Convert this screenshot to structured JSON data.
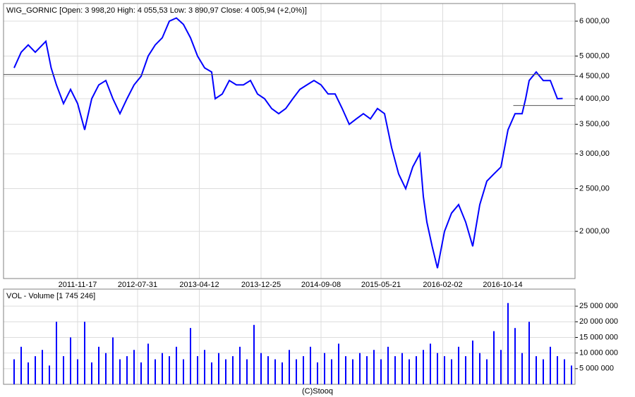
{
  "chart_data": [
    {
      "type": "line",
      "title": "WIG_GORNIC [Open: 3 998,20  High: 4 055,53  Low: 3 890,97  Close: 4 005,94  (+2,0%)]",
      "color": "#0000ff",
      "log_scale": true,
      "grid": true,
      "x": [
        0,
        4,
        8,
        12,
        18,
        21,
        24,
        28,
        32,
        36,
        40,
        44,
        48,
        52,
        56,
        60,
        64,
        68,
        72,
        76,
        80,
        84,
        88,
        92,
        96,
        100,
        104,
        108,
        112,
        114,
        118,
        122,
        126,
        130,
        134,
        138,
        142,
        146,
        150,
        154,
        158,
        162,
        166,
        170,
        174,
        178,
        182,
        186,
        190,
        194,
        198,
        202,
        206,
        210,
        214,
        218,
        222,
        226,
        230,
        232,
        234,
        237,
        240,
        244,
        248,
        252,
        256,
        260,
        264,
        268,
        272,
        276,
        280,
        284,
        288,
        290,
        292,
        296,
        300,
        304,
        308,
        311
      ],
      "values": [
        4700,
        5100,
        5300,
        5100,
        5400,
        4700,
        4300,
        3900,
        4200,
        3900,
        3400,
        4000,
        4300,
        4400,
        4000,
        3700,
        4000,
        4300,
        4500,
        5000,
        5300,
        5500,
        6000,
        6100,
        5900,
        5500,
        5000,
        4700,
        4600,
        4000,
        4100,
        4400,
        4300,
        4300,
        4400,
        4100,
        4000,
        3800,
        3700,
        3800,
        4000,
        4200,
        4300,
        4400,
        4300,
        4100,
        4100,
        3800,
        3500,
        3600,
        3700,
        3600,
        3800,
        3700,
        3100,
        2700,
        2500,
        2800,
        3000,
        2400,
        2100,
        1850,
        1650,
        2000,
        2200,
        2300,
        2100,
        1850,
        2300,
        2600,
        2700,
        2800,
        3400,
        3700,
        3700,
        4000,
        4400,
        4600,
        4400,
        4400,
        4000,
        4006
      ],
      "xlim": [
        -6,
        318
      ],
      "xticks": [
        {
          "value": 36,
          "label": "2011-11-17"
        },
        {
          "value": 70,
          "label": "2012-07-31"
        },
        {
          "value": 105,
          "label": "2013-04-12"
        },
        {
          "value": 140,
          "label": "2013-12-25"
        },
        {
          "value": 174,
          "label": "2014-09-08"
        },
        {
          "value": 208,
          "label": "2015-05-21"
        },
        {
          "value": 243,
          "label": "2016-02-02"
        },
        {
          "value": 277,
          "label": "2016-10-14"
        }
      ],
      "ylim": [
        1563,
        6579
      ],
      "yticks": [
        {
          "value": 2000,
          "label": "2 000,00"
        },
        {
          "value": 2500,
          "label": "2 500,00"
        },
        {
          "value": 3000,
          "label": "3 000,00"
        },
        {
          "value": 3500,
          "label": "3 500,00"
        },
        {
          "value": 4000,
          "label": "4 000,00"
        },
        {
          "value": 4500,
          "label": "4 500,00"
        },
        {
          "value": 5000,
          "label": "5 000,00"
        },
        {
          "value": 6000,
          "label": "6 000,00"
        }
      ],
      "hlines": [
        4540,
        3860
      ]
    },
    {
      "type": "bar",
      "title": "VOL - Volume [1 745 246]",
      "color": "#0000ff",
      "grid": true,
      "x": [
        0,
        4,
        8,
        12,
        16,
        20,
        24,
        28,
        32,
        36,
        40,
        44,
        48,
        52,
        56,
        60,
        64,
        68,
        72,
        76,
        80,
        84,
        88,
        92,
        96,
        100,
        104,
        108,
        112,
        116,
        120,
        124,
        128,
        132,
        136,
        140,
        144,
        148,
        152,
        156,
        160,
        164,
        168,
        172,
        176,
        180,
        184,
        188,
        192,
        196,
        200,
        204,
        208,
        212,
        216,
        220,
        224,
        228,
        232,
        236,
        240,
        244,
        248,
        252,
        256,
        260,
        264,
        268,
        272,
        276,
        280,
        284,
        288,
        292,
        296,
        300,
        304,
        308,
        312,
        316
      ],
      "values": [
        8000000,
        12000000,
        7000000,
        9000000,
        11000000,
        6000000,
        20000000,
        9000000,
        15000000,
        8000000,
        20000000,
        7000000,
        12000000,
        10000000,
        15000000,
        8000000,
        9000000,
        11000000,
        7000000,
        13000000,
        8000000,
        10000000,
        9000000,
        12000000,
        8000000,
        18000000,
        9000000,
        11000000,
        7000000,
        10000000,
        8000000,
        9000000,
        12000000,
        8000000,
        19000000,
        10000000,
        9000000,
        8000000,
        7000000,
        11000000,
        8000000,
        9000000,
        12000000,
        7000000,
        10000000,
        8000000,
        13000000,
        9000000,
        8000000,
        10000000,
        9000000,
        11000000,
        8000000,
        12000000,
        9000000,
        10000000,
        8000000,
        9000000,
        11000000,
        13000000,
        10000000,
        9000000,
        8000000,
        12000000,
        9000000,
        14000000,
        10000000,
        8000000,
        17000000,
        11000000,
        26000000,
        18000000,
        10000000,
        20000000,
        9000000,
        8000000,
        12000000,
        9000000,
        8000000,
        6000000
      ],
      "xlim": [
        -6,
        318
      ],
      "ylim": [
        0,
        30450000
      ],
      "yticks": [
        {
          "value": 5000000,
          "label": "5 000 000"
        },
        {
          "value": 10000000,
          "label": "10 000 000"
        },
        {
          "value": 15000000,
          "label": "15 000 000"
        },
        {
          "value": 20000000,
          "label": "20 000 000"
        },
        {
          "value": 25000000,
          "label": "25 000 000"
        }
      ]
    }
  ],
  "footer": "(C)Stooq"
}
